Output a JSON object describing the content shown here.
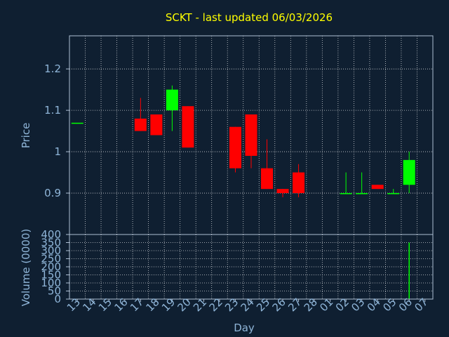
{
  "colors": {
    "background": "#0f1f31",
    "axis": "#aebfd4",
    "grid": "#ffffff",
    "tick_text": "#8fb5d8",
    "title": "#ffff00",
    "up": "#00ff00",
    "down": "#ff0000"
  },
  "chart_data": [
    {
      "type": "candlestick",
      "title": "SCKT - last updated 06/03/2026",
      "ylabel": "Price",
      "xlabel": "",
      "ylim": [
        0.8,
        1.28
      ],
      "yticks": [
        0.9,
        1,
        1.1,
        1.2
      ],
      "ytick_labels": [
        "0.9",
        "1",
        "1.1",
        "1.2"
      ],
      "grid": true,
      "categories": [
        "13",
        "14",
        "15",
        "16",
        "17",
        "18",
        "19",
        "20",
        "21",
        "22",
        "23",
        "24",
        "25",
        "26",
        "27",
        "28",
        "01",
        "02",
        "03",
        "04",
        "05",
        "06",
        "07"
      ],
      "candles": [
        {
          "x": "13",
          "open": 1.07,
          "close": 1.07,
          "high": 1.07,
          "low": 1.07
        },
        {
          "x": "17",
          "open": 1.08,
          "close": 1.05,
          "high": 1.13,
          "low": 1.05
        },
        {
          "x": "18",
          "open": 1.09,
          "close": 1.04,
          "high": 1.09,
          "low": 1.04
        },
        {
          "x": "19",
          "open": 1.1,
          "close": 1.15,
          "high": 1.16,
          "low": 1.05
        },
        {
          "x": "20",
          "open": 1.11,
          "close": 1.01,
          "high": 1.11,
          "low": 1.01
        },
        {
          "x": "23",
          "open": 1.06,
          "close": 0.96,
          "high": 1.06,
          "low": 0.95
        },
        {
          "x": "24",
          "open": 1.09,
          "close": 0.99,
          "high": 1.09,
          "low": 0.96
        },
        {
          "x": "25",
          "open": 0.96,
          "close": 0.91,
          "high": 1.03,
          "low": 0.91
        },
        {
          "x": "26",
          "open": 0.91,
          "close": 0.9,
          "high": 0.91,
          "low": 0.89
        },
        {
          "x": "27",
          "open": 0.95,
          "close": 0.9,
          "high": 0.97,
          "low": 0.89
        },
        {
          "x": "02",
          "open": 0.9,
          "close": 0.9,
          "high": 0.95,
          "low": 0.9
        },
        {
          "x": "03",
          "open": 0.9,
          "close": 0.9,
          "high": 0.95,
          "low": 0.9
        },
        {
          "x": "04",
          "open": 0.92,
          "close": 0.91,
          "high": 0.92,
          "low": 0.91
        },
        {
          "x": "05",
          "open": 0.9,
          "close": 0.9,
          "high": 0.91,
          "low": 0.9
        },
        {
          "x": "06",
          "open": 0.92,
          "close": 0.98,
          "high": 1.0,
          "low": 0.9
        }
      ]
    },
    {
      "type": "bar",
      "ylabel": "Volume (0000)",
      "xlabel": "Day",
      "ylim": [
        0,
        400
      ],
      "yticks": [
        0,
        50,
        100,
        150,
        200,
        250,
        300,
        350,
        400
      ],
      "ytick_labels": [
        "0",
        "50",
        "100",
        "150",
        "200",
        "250",
        "300",
        "350",
        "400"
      ],
      "grid": true,
      "categories": [
        "13",
        "14",
        "15",
        "16",
        "17",
        "18",
        "19",
        "20",
        "21",
        "22",
        "23",
        "24",
        "25",
        "26",
        "27",
        "28",
        "01",
        "02",
        "03",
        "04",
        "05",
        "06",
        "07"
      ],
      "values": [
        0,
        0,
        0,
        0,
        0,
        0,
        0,
        0,
        0,
        0,
        0,
        0,
        0,
        0,
        0,
        0,
        0,
        0,
        0,
        0,
        0,
        350,
        0
      ]
    }
  ]
}
